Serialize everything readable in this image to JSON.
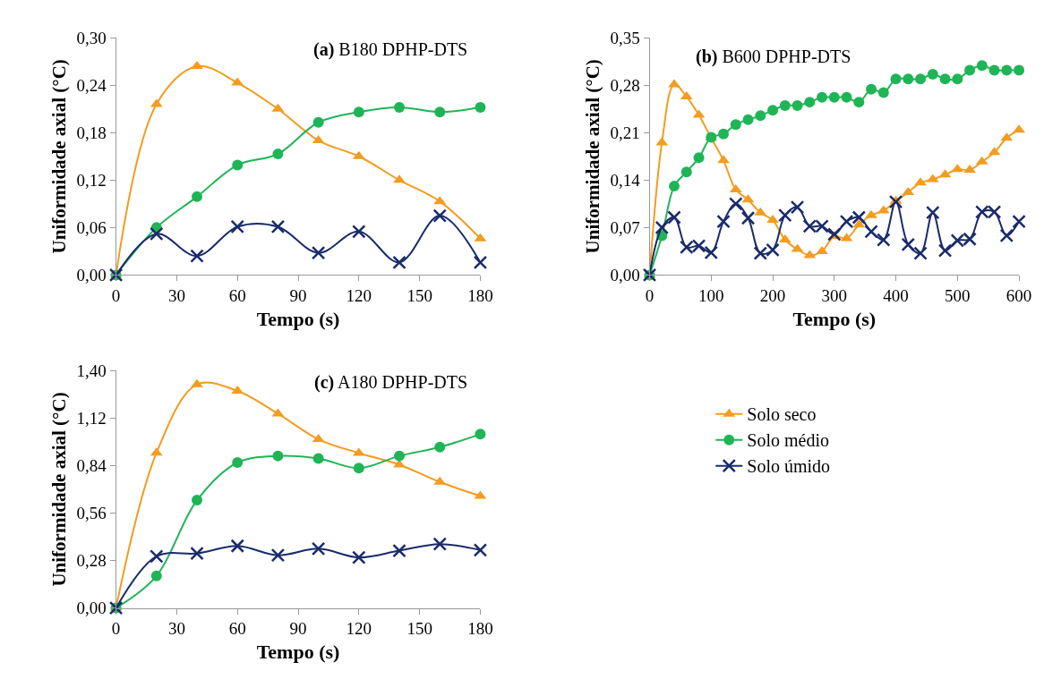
{
  "chart_data": [
    {
      "type": "line",
      "title": "(a) B180 DPHP-DTS",
      "xlabel": "Tempo (s)",
      "ylabel": "Uniformidade axial (°C)",
      "x": [
        0,
        20,
        40,
        60,
        80,
        100,
        120,
        140,
        160,
        180
      ],
      "xlim": [
        0,
        180
      ],
      "xticks": [
        0,
        30,
        60,
        90,
        120,
        150,
        180
      ],
      "ylim": [
        0,
        0.3
      ],
      "yticks": [
        {
          "value": 0,
          "label": "0,00"
        },
        {
          "value": 0.06,
          "label": "0,06"
        },
        {
          "value": 0.12,
          "label": "0,12"
        },
        {
          "value": 0.18,
          "label": "0,18"
        },
        {
          "value": 0.24,
          "label": "0,24"
        },
        {
          "value": 0.3,
          "label": "0,30"
        }
      ],
      "legend": false,
      "series": [
        {
          "color": "#f39c1f",
          "marker": "triangle",
          "values": [
            0,
            0.216,
            0.264,
            0.243,
            0.21,
            0.17,
            0.15,
            0.12,
            0.093,
            0.046
          ]
        },
        {
          "color": "#1fb556",
          "marker": "circle",
          "values": [
            0,
            0.06,
            0.099,
            0.139,
            0.153,
            0.193,
            0.206,
            0.212,
            0.206,
            0.212
          ]
        },
        {
          "color": "#1a2b6b",
          "marker": "cross",
          "values": [
            0,
            0.052,
            0.024,
            0.061,
            0.061,
            0.028,
            0.055,
            0.016,
            0.075,
            0.016
          ]
        }
      ]
    },
    {
      "type": "line",
      "title": "(b) B600 DPHP-DTS",
      "xlabel": "Tempo (s)",
      "ylabel": "Uniformidade axial (°C)",
      "x": [
        0,
        20,
        40,
        60,
        80,
        100,
        120,
        140,
        160,
        180,
        200,
        220,
        240,
        260,
        280,
        300,
        320,
        340,
        360,
        380,
        400,
        420,
        440,
        460,
        480,
        500,
        520,
        540,
        560,
        580,
        600
      ],
      "xlim": [
        0,
        600
      ],
      "xticks": [
        0,
        100,
        200,
        300,
        400,
        500,
        600
      ],
      "ylim": [
        0,
        0.35
      ],
      "yticks": [
        {
          "value": 0,
          "label": "0,00"
        },
        {
          "value": 0.07,
          "label": "0,07"
        },
        {
          "value": 0.14,
          "label": "0,14"
        },
        {
          "value": 0.21,
          "label": "0,21"
        },
        {
          "value": 0.28,
          "label": "0,28"
        },
        {
          "value": 0.35,
          "label": "0,35"
        }
      ],
      "legend": false,
      "series": [
        {
          "color": "#f39c1f",
          "marker": "triangle",
          "values": [
            0,
            0.195,
            0.281,
            0.263,
            0.236,
            0.202,
            0.169,
            0.126,
            0.111,
            0.092,
            0.081,
            0.052,
            0.038,
            0.029,
            0.035,
            0.057,
            0.054,
            0.074,
            0.088,
            0.095,
            0.109,
            0.122,
            0.136,
            0.141,
            0.148,
            0.156,
            0.155,
            0.167,
            0.181,
            0.202,
            0.214
          ]
        },
        {
          "color": "#1fb556",
          "marker": "circle",
          "values": [
            0,
            0.058,
            0.131,
            0.152,
            0.173,
            0.203,
            0.208,
            0.222,
            0.229,
            0.235,
            0.243,
            0.25,
            0.25,
            0.255,
            0.262,
            0.262,
            0.262,
            0.255,
            0.274,
            0.269,
            0.289,
            0.289,
            0.289,
            0.296,
            0.289,
            0.289,
            0.302,
            0.309,
            0.302,
            0.302,
            0.302
          ]
        },
        {
          "color": "#1a2b6b",
          "marker": "cross",
          "values": [
            0,
            0.07,
            0.085,
            0.041,
            0.043,
            0.033,
            0.079,
            0.105,
            0.084,
            0.032,
            0.037,
            0.088,
            0.1,
            0.072,
            0.072,
            0.06,
            0.079,
            0.085,
            0.064,
            0.052,
            0.108,
            0.045,
            0.032,
            0.092,
            0.036,
            0.051,
            0.053,
            0.093,
            0.093,
            0.058,
            0.079
          ]
        }
      ]
    },
    {
      "type": "line",
      "title": "(c) A180 DPHP-DTS",
      "xlabel": "Tempo (s)",
      "ylabel": "Uniformidade axial (°C)",
      "x": [
        0,
        20,
        40,
        60,
        80,
        100,
        120,
        140,
        160,
        180
      ],
      "xlim": [
        0,
        180
      ],
      "xticks": [
        0,
        30,
        60,
        90,
        120,
        150,
        180
      ],
      "ylim": [
        0,
        1.4
      ],
      "yticks": [
        {
          "value": 0,
          "label": "0,00"
        },
        {
          "value": 0.28,
          "label": "0,28"
        },
        {
          "value": 0.56,
          "label": "0,56"
        },
        {
          "value": 0.84,
          "label": "0,84"
        },
        {
          "value": 1.12,
          "label": "1,12"
        },
        {
          "value": 1.4,
          "label": "1,40"
        }
      ],
      "legend": "right",
      "series": [
        {
          "name": "Solo seco",
          "color": "#f39c1f",
          "marker": "triangle",
          "values": [
            0,
            0.915,
            1.319,
            1.28,
            1.146,
            0.995,
            0.914,
            0.845,
            0.743,
            0.66
          ]
        },
        {
          "name": "Solo médio",
          "color": "#1fb556",
          "marker": "circle",
          "values": [
            0,
            0.189,
            0.636,
            0.858,
            0.897,
            0.882,
            0.825,
            0.897,
            0.949,
            1.025
          ]
        },
        {
          "name": "Solo úmido",
          "color": "#1a2b6b",
          "marker": "cross",
          "values": [
            0,
            0.305,
            0.322,
            0.366,
            0.311,
            0.35,
            0.298,
            0.338,
            0.377,
            0.342
          ]
        }
      ]
    }
  ]
}
